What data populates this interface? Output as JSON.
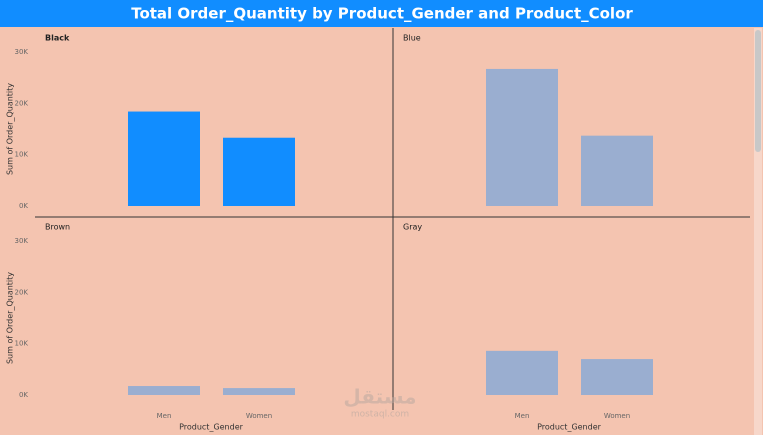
{
  "title": "Total Order_Quantity by Product_Gender and Product_Color",
  "y_label": "Sum of Order_Quantity",
  "x_label": "Product_Gender",
  "watermark": [
    "مستقل",
    "mostaql.com"
  ],
  "chart_data": [
    {
      "type": "bar",
      "title": "Black",
      "categories": [
        null,
        null
      ],
      "values": [
        18400,
        13300
      ],
      "color": "#118dff",
      "ylim": [
        0,
        30000
      ],
      "yticks": [
        {
          "value": 0,
          "label": "0K"
        },
        {
          "value": 10000,
          "label": "10K"
        },
        {
          "value": 20000,
          "label": "20K"
        },
        {
          "value": 30000,
          "label": "30K"
        }
      ]
    },
    {
      "type": "bar",
      "title": "Blue",
      "categories": [
        null,
        null
      ],
      "values": [
        26700,
        13700
      ],
      "color": "#9aaed0",
      "ylim": [
        0,
        30000
      ]
    },
    {
      "type": "bar",
      "title": "Brown",
      "categories": [
        "Men",
        "Women"
      ],
      "values": [
        1750,
        1350
      ],
      "color": "#9aaed0",
      "ylim": [
        0,
        30000
      ],
      "yticks": [
        {
          "value": 0,
          "label": "0K"
        },
        {
          "value": 10000,
          "label": "10K"
        },
        {
          "value": 20000,
          "label": "20K"
        },
        {
          "value": 30000,
          "label": "30K"
        }
      ]
    },
    {
      "type": "bar",
      "title": "Gray",
      "categories": [
        "Men",
        "Women"
      ],
      "values": [
        8600,
        7000
      ],
      "color": "#9aaed0",
      "ylim": [
        0,
        30000
      ]
    }
  ]
}
